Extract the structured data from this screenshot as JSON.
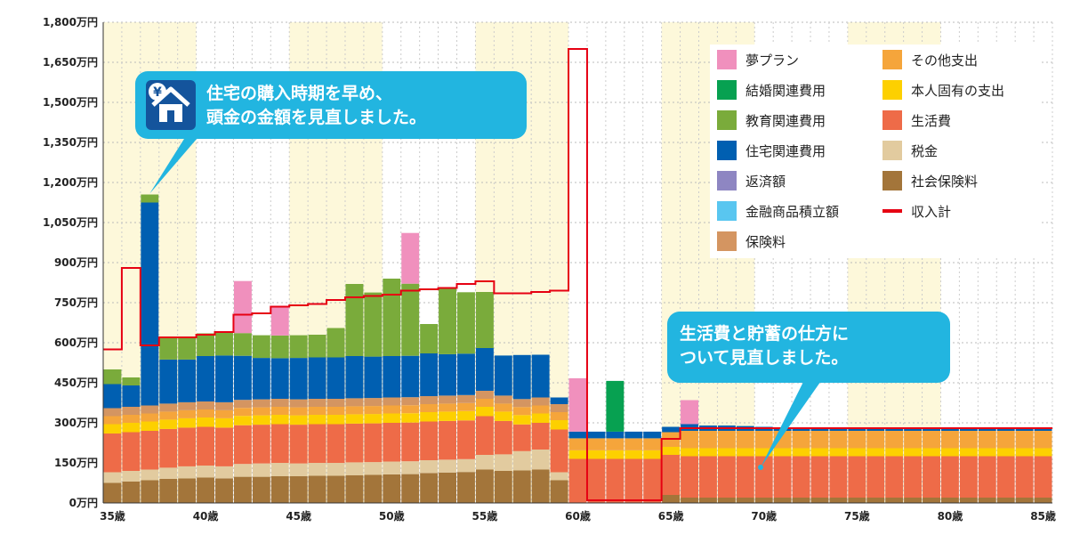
{
  "chart_data": {
    "type": "bar",
    "stacked": true,
    "ylim": [
      0,
      1800
    ],
    "y_tick_values": [
      0,
      150,
      300,
      450,
      600,
      750,
      900,
      1050,
      1200,
      1350,
      1500,
      1650,
      1800
    ],
    "y_tick_labels": [
      "0万円",
      "150万円",
      "300万円",
      "450万円",
      "600万円",
      "750万円",
      "900万円",
      "1,050万円",
      "1,200万円",
      "1,350万円",
      "1,500万円",
      "1,650万円",
      "1,800万円"
    ],
    "x_tick_ages": [
      35,
      40,
      45,
      50,
      55,
      60,
      65,
      70,
      75,
      80,
      85
    ],
    "x_tick_labels": [
      "35歳",
      "40歳",
      "45歳",
      "50歳",
      "55歳",
      "60歳",
      "65歳",
      "70歳",
      "75歳",
      "80歳",
      "85歳"
    ],
    "categories": [
      35,
      36,
      37,
      38,
      39,
      40,
      41,
      42,
      43,
      44,
      45,
      46,
      47,
      48,
      49,
      50,
      51,
      52,
      53,
      54,
      55,
      56,
      57,
      58,
      59,
      60,
      61,
      62,
      63,
      64,
      65,
      66,
      67,
      68,
      69,
      70,
      71,
      72,
      73,
      74,
      75,
      76,
      77,
      78,
      79,
      80,
      81,
      82,
      83,
      84,
      85
    ],
    "grid": true,
    "legend_position": "top-right",
    "series": [
      {
        "name": "社会保険料",
        "color": "#a3753a",
        "values": [
          75,
          80,
          85,
          90,
          92,
          95,
          92,
          98,
          98,
          100,
          100,
          102,
          102,
          104,
          105,
          107,
          108,
          112,
          114,
          116,
          125,
          120,
          122,
          125,
          85,
          0,
          0,
          0,
          0,
          0,
          30,
          20,
          20,
          20,
          20,
          20,
          20,
          20,
          20,
          20,
          20,
          20,
          20,
          20,
          20,
          20,
          20,
          20,
          20,
          20,
          20
        ]
      },
      {
        "name": "税金",
        "color": "#e2cb9f",
        "values": [
          40,
          40,
          40,
          42,
          45,
          45,
          45,
          48,
          50,
          50,
          48,
          48,
          48,
          48,
          48,
          48,
          48,
          48,
          48,
          48,
          55,
          62,
          72,
          75,
          30,
          0,
          0,
          0,
          0,
          0,
          0,
          0,
          0,
          0,
          0,
          0,
          0,
          0,
          0,
          0,
          0,
          0,
          0,
          0,
          0,
          0,
          0,
          0,
          0,
          0,
          0
        ]
      },
      {
        "name": "生活費",
        "color": "#ee6b48",
        "values": [
          145,
          145,
          145,
          145,
          145,
          145,
          145,
          145,
          145,
          145,
          145,
          145,
          145,
          145,
          145,
          145,
          145,
          145,
          145,
          145,
          145,
          125,
          100,
          100,
          160,
          165,
          165,
          165,
          165,
          165,
          150,
          155,
          155,
          155,
          155,
          155,
          155,
          155,
          155,
          155,
          155,
          155,
          155,
          155,
          155,
          155,
          155,
          155,
          155,
          155,
          155
        ]
      },
      {
        "name": "本人固有の支出",
        "color": "#fdd000",
        "values": [
          35,
          35,
          35,
          35,
          35,
          35,
          35,
          35,
          35,
          35,
          35,
          35,
          35,
          35,
          35,
          35,
          35,
          35,
          35,
          35,
          35,
          35,
          35,
          35,
          35,
          32,
          32,
          32,
          32,
          32,
          30,
          30,
          30,
          30,
          30,
          30,
          30,
          30,
          30,
          30,
          30,
          30,
          30,
          30,
          30,
          30,
          30,
          30,
          30,
          30,
          30
        ]
      },
      {
        "name": "その他支出",
        "color": "#f5a53b",
        "values": [
          30,
          30,
          30,
          30,
          30,
          30,
          30,
          30,
          30,
          30,
          30,
          30,
          30,
          30,
          30,
          30,
          30,
          30,
          30,
          30,
          30,
          30,
          30,
          30,
          30,
          45,
          45,
          45,
          45,
          45,
          55,
          65,
          65,
          65,
          65,
          65,
          65,
          65,
          65,
          65,
          65,
          65,
          65,
          65,
          65,
          65,
          65,
          65,
          65,
          65,
          65
        ]
      },
      {
        "name": "保険料",
        "color": "#d49561",
        "values": [
          30,
          30,
          30,
          30,
          30,
          30,
          30,
          30,
          30,
          30,
          30,
          30,
          30,
          30,
          30,
          30,
          30,
          30,
          30,
          30,
          30,
          30,
          30,
          30,
          30,
          0,
          0,
          0,
          0,
          0,
          0,
          0,
          0,
          0,
          0,
          0,
          0,
          0,
          0,
          0,
          0,
          0,
          0,
          0,
          0,
          0,
          0,
          0,
          0,
          0,
          0
        ]
      },
      {
        "name": "金融商品積立額",
        "color": "#59c6f0",
        "values": [
          0,
          0,
          0,
          0,
          0,
          0,
          0,
          0,
          0,
          0,
          0,
          0,
          0,
          0,
          0,
          0,
          0,
          0,
          0,
          0,
          0,
          0,
          0,
          0,
          0,
          0,
          0,
          0,
          0,
          0,
          0,
          0,
          0,
          0,
          0,
          0,
          0,
          0,
          0,
          0,
          0,
          0,
          0,
          0,
          0,
          0,
          0,
          0,
          0,
          0,
          0
        ]
      },
      {
        "name": "返済額",
        "color": "#8e86c2",
        "values": [
          0,
          0,
          0,
          0,
          0,
          0,
          0,
          0,
          0,
          0,
          0,
          0,
          0,
          0,
          0,
          0,
          0,
          0,
          0,
          0,
          0,
          0,
          0,
          0,
          0,
          0,
          0,
          0,
          0,
          0,
          0,
          0,
          0,
          0,
          0,
          0,
          0,
          0,
          0,
          0,
          0,
          0,
          0,
          0,
          0,
          0,
          0,
          0,
          0,
          0,
          0
        ]
      },
      {
        "name": "住宅関連費用",
        "color": "#005fb1",
        "values": [
          90,
          80,
          760,
          165,
          160,
          170,
          175,
          165,
          155,
          152,
          155,
          155,
          155,
          158,
          155,
          155,
          155,
          160,
          155,
          155,
          160,
          150,
          165,
          160,
          25,
          25,
          25,
          25,
          25,
          25,
          20,
          25,
          20,
          20,
          18,
          15,
          8,
          8,
          8,
          8,
          8,
          8,
          8,
          8,
          8,
          8,
          8,
          8,
          8,
          8,
          8
        ]
      },
      {
        "name": "教育関連費用",
        "color": "#7aab3b",
        "values": [
          55,
          30,
          30,
          85,
          85,
          85,
          85,
          85,
          85,
          85,
          85,
          85,
          110,
          270,
          240,
          290,
          270,
          110,
          250,
          230,
          210,
          0,
          0,
          0,
          0,
          0,
          0,
          0,
          0,
          0,
          0,
          0,
          0,
          0,
          0,
          0,
          0,
          0,
          0,
          0,
          0,
          0,
          0,
          0,
          0,
          0,
          0,
          0,
          0,
          0,
          0
        ]
      },
      {
        "name": "結婚関連費用",
        "color": "#07a151",
        "values": [
          0,
          0,
          0,
          0,
          0,
          0,
          0,
          0,
          0,
          0,
          0,
          0,
          0,
          0,
          0,
          0,
          0,
          0,
          0,
          0,
          0,
          0,
          0,
          0,
          0,
          0,
          0,
          190,
          0,
          0,
          0,
          0,
          0,
          0,
          0,
          0,
          0,
          0,
          0,
          0,
          0,
          0,
          0,
          0,
          0,
          0,
          0,
          0,
          0,
          0,
          0
        ]
      },
      {
        "name": "夢プラン",
        "color": "#f090bd",
        "values": [
          0,
          0,
          0,
          0,
          0,
          0,
          0,
          195,
          0,
          105,
          0,
          0,
          0,
          0,
          0,
          0,
          190,
          0,
          0,
          0,
          0,
          0,
          0,
          0,
          0,
          200,
          0,
          0,
          0,
          0,
          0,
          90,
          0,
          0,
          0,
          0,
          0,
          0,
          0,
          0,
          0,
          0,
          0,
          0,
          0,
          0,
          0,
          0,
          0,
          0,
          0
        ]
      }
    ],
    "income_series": {
      "name": "収入計",
      "color": "#e60012",
      "values": [
        575,
        880,
        590,
        620,
        620,
        630,
        640,
        705,
        710,
        735,
        740,
        745,
        760,
        770,
        775,
        780,
        795,
        800,
        805,
        820,
        830,
        785,
        785,
        790,
        795,
        1700,
        10,
        10,
        10,
        10,
        240,
        280,
        280,
        280,
        280,
        280,
        280,
        280,
        280,
        280,
        280,
        280,
        280,
        280,
        280,
        280,
        280,
        280,
        280,
        280,
        280
      ]
    },
    "annotations": [
      {
        "line1": "住宅の購入時期を早め、",
        "line2": "頭金の金額を見直しました。",
        "icon": "home-yen-icon"
      },
      {
        "line1": "生活費と貯蓄の仕方に",
        "line2": "ついて見直しました。"
      }
    ]
  }
}
